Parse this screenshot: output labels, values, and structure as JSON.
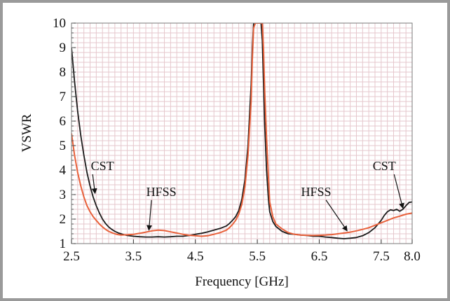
{
  "chart_data": {
    "type": "line",
    "xlabel": "Frequency [GHz]",
    "ylabel": "VSWR",
    "xlim": [
      2.5,
      8.0
    ],
    "ylim": [
      1,
      10
    ],
    "xticks": [
      "2.5",
      "3.5",
      "4.5",
      "5.5",
      "6.5",
      "7.5",
      "8.0"
    ],
    "yticks": [
      "1",
      "2",
      "3",
      "4",
      "5",
      "6",
      "7",
      "8",
      "9",
      "10"
    ],
    "grid": true,
    "colors": {
      "CST": "#1a1a1a",
      "HFSS": "#e8603a",
      "grid": "#e6c7cc"
    },
    "annotations": [
      {
        "text": "CST",
        "text_at": [
          3.0,
          4.0
        ],
        "arrow_to": [
          2.88,
          3.05
        ]
      },
      {
        "text": "HFSS",
        "text_at": [
          3.95,
          2.95
        ],
        "arrow_to": [
          3.75,
          1.55
        ]
      },
      {
        "text": "HFSS",
        "text_at": [
          6.45,
          2.95
        ],
        "arrow_to": [
          6.95,
          1.52
        ]
      },
      {
        "text": "CST",
        "text_at": [
          7.55,
          4.0
        ],
        "arrow_to": [
          7.85,
          2.45
        ]
      }
    ],
    "series": [
      {
        "name": "CST",
        "x": [
          2.5,
          2.55,
          2.6,
          2.65,
          2.7,
          2.75,
          2.8,
          2.85,
          2.9,
          2.95,
          3.0,
          3.05,
          3.1,
          3.15,
          3.2,
          3.25,
          3.3,
          3.35,
          3.4,
          3.5,
          3.6,
          3.7,
          3.8,
          3.9,
          4.0,
          4.1,
          4.2,
          4.3,
          4.4,
          4.5,
          4.6,
          4.7,
          4.8,
          4.9,
          5.0,
          5.05,
          5.1,
          5.15,
          5.2,
          5.25,
          5.3,
          5.35,
          5.4,
          5.42,
          5.44,
          5.47,
          5.5,
          5.53,
          5.56,
          5.58,
          5.6,
          5.62,
          5.65,
          5.68,
          5.7,
          5.75,
          5.8,
          5.9,
          6.0,
          6.1,
          6.2,
          6.3,
          6.4,
          6.5,
          6.6,
          6.7,
          6.8,
          6.9,
          7.0,
          7.1,
          7.2,
          7.3,
          7.4,
          7.5,
          7.55,
          7.6,
          7.65,
          7.7,
          7.75,
          7.8,
          7.85,
          7.9,
          7.95,
          8.0
        ],
        "y": [
          9.0,
          7.6,
          6.4,
          5.4,
          4.6,
          3.9,
          3.35,
          2.9,
          2.55,
          2.25,
          2.0,
          1.82,
          1.68,
          1.58,
          1.5,
          1.44,
          1.4,
          1.36,
          1.33,
          1.3,
          1.28,
          1.27,
          1.27,
          1.28,
          1.27,
          1.28,
          1.3,
          1.3,
          1.33,
          1.38,
          1.42,
          1.48,
          1.55,
          1.62,
          1.72,
          1.82,
          1.95,
          2.1,
          2.35,
          2.8,
          3.6,
          5.0,
          7.5,
          9.0,
          10.0,
          10.0,
          10.0,
          10.0,
          10.0,
          9.3,
          7.6,
          5.8,
          4.0,
          2.8,
          2.3,
          1.9,
          1.7,
          1.5,
          1.4,
          1.38,
          1.35,
          1.33,
          1.3,
          1.3,
          1.27,
          1.25,
          1.22,
          1.2,
          1.22,
          1.25,
          1.32,
          1.45,
          1.65,
          1.95,
          2.15,
          2.3,
          2.38,
          2.35,
          2.4,
          2.32,
          2.4,
          2.55,
          2.68,
          2.7
        ]
      },
      {
        "name": "HFSS",
        "x": [
          2.5,
          2.55,
          2.6,
          2.65,
          2.7,
          2.75,
          2.8,
          2.85,
          2.9,
          2.95,
          3.0,
          3.05,
          3.1,
          3.15,
          3.2,
          3.25,
          3.3,
          3.4,
          3.5,
          3.6,
          3.7,
          3.8,
          3.9,
          4.0,
          4.1,
          4.2,
          4.3,
          4.4,
          4.5,
          4.6,
          4.7,
          4.8,
          4.9,
          5.0,
          5.05,
          5.1,
          5.15,
          5.2,
          5.25,
          5.3,
          5.35,
          5.4,
          5.42,
          5.44,
          5.47,
          5.5,
          5.53,
          5.56,
          5.58,
          5.6,
          5.62,
          5.65,
          5.68,
          5.7,
          5.75,
          5.8,
          5.9,
          6.0,
          6.1,
          6.2,
          6.3,
          6.4,
          6.5,
          6.6,
          6.7,
          6.8,
          6.9,
          7.0,
          7.1,
          7.2,
          7.3,
          7.4,
          7.5,
          7.6,
          7.7,
          7.8,
          7.9,
          8.0
        ],
        "y": [
          5.5,
          4.6,
          3.9,
          3.35,
          2.9,
          2.55,
          2.3,
          2.1,
          1.95,
          1.8,
          1.68,
          1.58,
          1.5,
          1.45,
          1.4,
          1.37,
          1.35,
          1.36,
          1.38,
          1.42,
          1.47,
          1.52,
          1.55,
          1.53,
          1.48,
          1.43,
          1.38,
          1.34,
          1.32,
          1.3,
          1.32,
          1.38,
          1.45,
          1.55,
          1.65,
          1.78,
          1.95,
          2.2,
          2.6,
          3.3,
          4.6,
          6.8,
          8.5,
          9.8,
          10.0,
          10.0,
          10.0,
          10.0,
          10.0,
          9.0,
          7.2,
          5.3,
          3.7,
          2.7,
          2.1,
          1.8,
          1.6,
          1.45,
          1.38,
          1.35,
          1.34,
          1.33,
          1.34,
          1.35,
          1.37,
          1.4,
          1.43,
          1.47,
          1.52,
          1.58,
          1.65,
          1.75,
          1.85,
          1.95,
          2.05,
          2.12,
          2.2,
          2.25
        ]
      }
    ]
  }
}
